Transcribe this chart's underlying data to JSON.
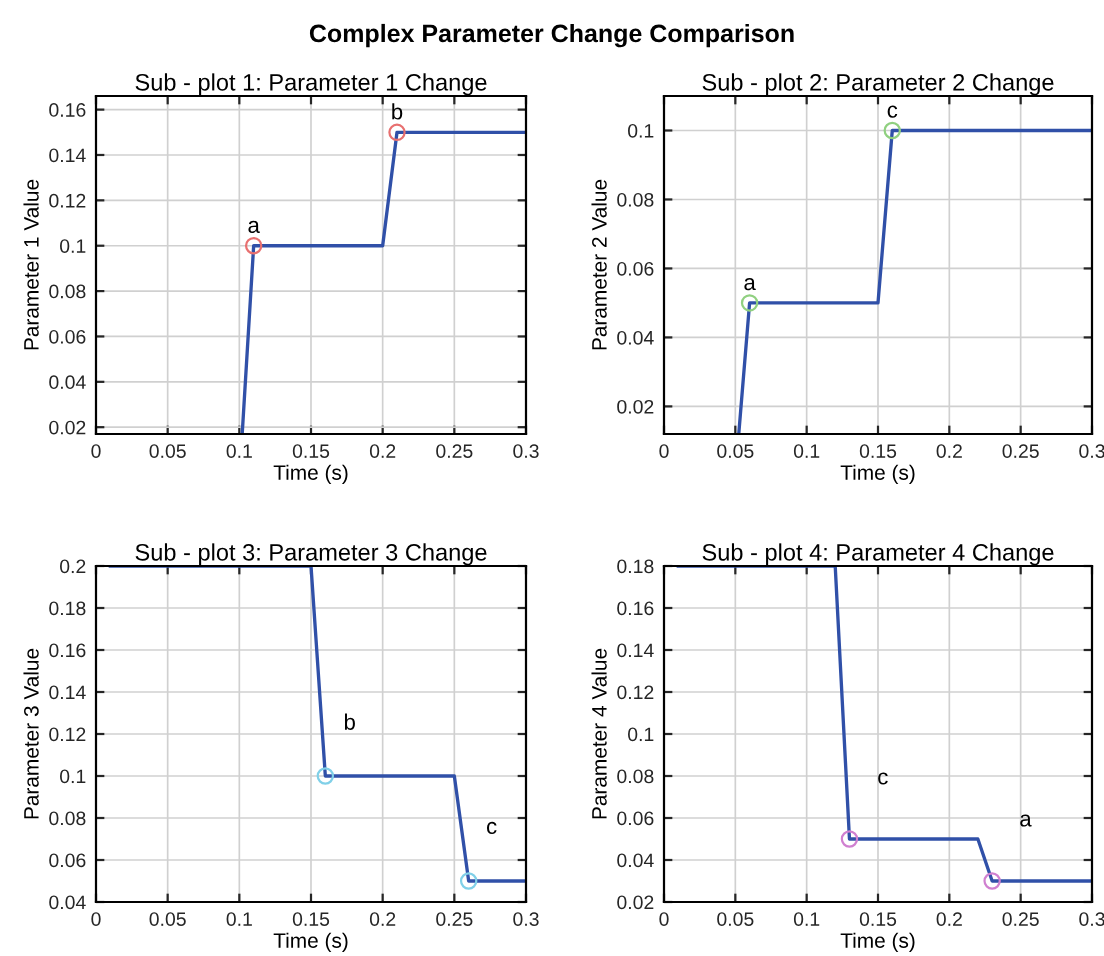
{
  "chart_data": [
    {
      "type": "line",
      "title": "Sub - plot 1: Parameter 1 Change",
      "xlabel": "Time (s)",
      "ylabel": "Parameter 1 Value",
      "xlim": [
        0,
        0.3
      ],
      "ylim": [
        0.017,
        0.166
      ],
      "xticks": [
        0,
        0.05,
        0.1,
        0.15,
        0.2,
        0.25,
        0.3
      ],
      "yticks": [
        0.02,
        0.04,
        0.06,
        0.08,
        0.1,
        0.12,
        0.14,
        0.16
      ],
      "grid": true,
      "series": [
        {
          "color": "#3050a8",
          "x": [
            0.102,
            0.11,
            0.2,
            0.21,
            0.3
          ],
          "values": [
            0.017,
            0.1,
            0.1,
            0.15,
            0.15
          ]
        },
        {
          "type": "scatter",
          "color": "#e87070",
          "marker": "circle",
          "x": [
            0.11,
            0.21
          ],
          "values": [
            0.1,
            0.15
          ]
        }
      ],
      "annotations": [
        "Complex Parameter Change Comparison",
        {
          "text": "a",
          "x": 0.11,
          "y": 0.1
        },
        {
          "text": "b",
          "x": 0.21,
          "y": 0.15
        }
      ]
    },
    {
      "type": "line",
      "title": "Sub - plot 2: Parameter 2 Change",
      "xlabel": "Time (s)",
      "ylabel": "Parameter 2 Value",
      "xlim": [
        0,
        0.3
      ],
      "ylim": [
        0.012,
        0.11
      ],
      "xticks": [
        0,
        0.05,
        0.1,
        0.15,
        0.2,
        0.25,
        0.3
      ],
      "yticks": [
        0.02,
        0.04,
        0.06,
        0.08,
        0.1
      ],
      "grid": true,
      "series": [
        {
          "color": "#3050a8",
          "x": [
            0.0524,
            0.06,
            0.15,
            0.16,
            0.3
          ],
          "values": [
            0.012,
            0.05,
            0.05,
            0.1,
            0.1
          ]
        },
        {
          "type": "scatter",
          "color": "#90d080",
          "marker": "circle",
          "x": [
            0.06,
            0.16
          ],
          "values": [
            0.05,
            0.1
          ]
        }
      ],
      "annotations": [
        {
          "text": "a",
          "x": 0.06,
          "y": 0.05
        },
        {
          "text": "c",
          "x": 0.16,
          "y": 0.1
        }
      ]
    },
    {
      "type": "line",
      "title": "Sub - plot 3: Parameter 3 Change",
      "xlabel": "Time (s)",
      "ylabel": "Parameter 3 Value",
      "xlim": [
        0,
        0.3
      ],
      "ylim": [
        0.04,
        0.2
      ],
      "xticks": [
        0,
        0.05,
        0.1,
        0.15,
        0.2,
        0.25,
        0.3
      ],
      "yticks": [
        0.04,
        0.06,
        0.08,
        0.1,
        0.12,
        0.14,
        0.16,
        0.18,
        0.2
      ],
      "grid": true,
      "series": [
        {
          "color": "#3050a8",
          "x": [
            0.01,
            0.15,
            0.16,
            0.25,
            0.26,
            0.3
          ],
          "values": [
            0.2,
            0.2,
            0.1,
            0.1,
            0.05,
            0.05
          ]
        },
        {
          "type": "scatter",
          "color": "#80d0e8",
          "marker": "circle",
          "x": [
            0.16,
            0.26
          ],
          "values": [
            0.1,
            0.05
          ]
        }
      ],
      "annotations": [
        "b",
        "c"
      ]
    },
    {
      "type": "line",
      "title": "Sub - plot 4: Parameter 4 Change",
      "xlabel": "Time (s)",
      "ylabel": "Parameter 4 Value",
      "xlim": [
        0,
        0.3
      ],
      "ylim": [
        0.02,
        0.18
      ],
      "xticks": [
        0,
        0.05,
        0.1,
        0.15,
        0.2,
        0.25,
        0.3
      ],
      "yticks": [
        0.02,
        0.04,
        0.06,
        0.08,
        0.1,
        0.12,
        0.14,
        0.16,
        0.18
      ],
      "grid": true,
      "series": [
        {
          "color": "#3050a8",
          "x": [
            0.01,
            0.12,
            0.13,
            0.22,
            0.23,
            0.3
          ],
          "values": [
            0.18,
            0.18,
            0.05,
            0.05,
            0.03,
            0.03
          ]
        },
        {
          "type": "scatter",
          "color": "#d080d0",
          "marker": "circle",
          "x": [
            0.13,
            0.23
          ],
          "values": [
            0.05,
            0.03
          ]
        }
      ],
      "annotations": [
        {
          "text": "c",
          "x": 0.13,
          "y": 0.05
        },
        {
          "text": "a",
          "x": 0.23,
          "y": 0.03
        }
      ]
    }
  ]
}
